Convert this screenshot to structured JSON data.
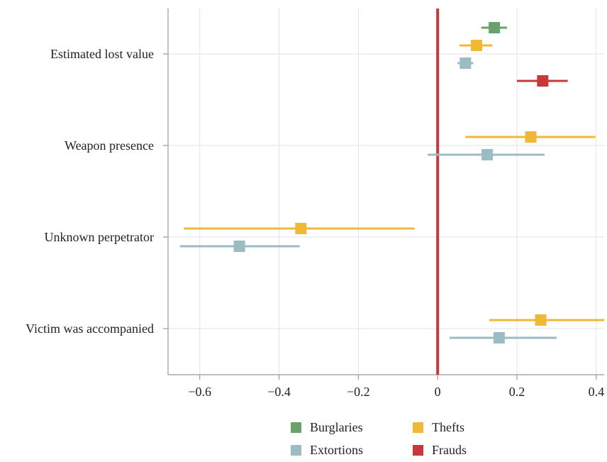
{
  "chart_data": {
    "type": "coefficient_plot",
    "orientation": "horizontal",
    "categories": [
      "Estimated lost value",
      "Weapon presence",
      "Unknown perpetrator",
      "Victim was accompanied"
    ],
    "x_ticks": [
      -0.6,
      -0.4,
      -0.2,
      0,
      0.2,
      0.4
    ],
    "x_tick_labels": [
      "−0.6",
      "−0.4",
      "−0.2",
      "0",
      "0.2",
      "0.4"
    ],
    "xlim": [
      -0.68,
      0.42
    ],
    "reference_line": {
      "x": 0,
      "color": "#c8383a"
    },
    "grid": true,
    "legend_position": "bottom",
    "series": [
      {
        "name": "Burglaries",
        "color": "#6aa26b",
        "points": [
          {
            "category": "Estimated lost value",
            "estimate": 0.143,
            "ci_low": 0.11,
            "ci_high": 0.175
          }
        ]
      },
      {
        "name": "Thefts",
        "color": "#efb835",
        "points": [
          {
            "category": "Estimated lost value",
            "estimate": 0.098,
            "ci_low": 0.055,
            "ci_high": 0.138
          },
          {
            "category": "Weapon presence",
            "estimate": 0.235,
            "ci_low": 0.07,
            "ci_high": 0.398
          },
          {
            "category": "Unknown perpetrator",
            "estimate": -0.345,
            "ci_low": -0.64,
            "ci_high": -0.058
          },
          {
            "category": "Victim was accompanied",
            "estimate": 0.26,
            "ci_low": 0.13,
            "ci_high": 0.42
          }
        ]
      },
      {
        "name": "Extortions",
        "color": "#9bbcc2",
        "points": [
          {
            "category": "Estimated lost value",
            "estimate": 0.07,
            "ci_low": 0.05,
            "ci_high": 0.09
          },
          {
            "category": "Weapon presence",
            "estimate": 0.125,
            "ci_low": -0.025,
            "ci_high": 0.27
          },
          {
            "category": "Unknown perpetrator",
            "estimate": -0.5,
            "ci_low": -0.65,
            "ci_high": -0.348
          },
          {
            "category": "Victim was accompanied",
            "estimate": 0.155,
            "ci_low": 0.03,
            "ci_high": 0.3
          }
        ]
      },
      {
        "name": "Frauds",
        "color": "#c8383a",
        "points": [
          {
            "category": "Estimated lost value",
            "estimate": 0.265,
            "ci_low": 0.2,
            "ci_high": 0.328
          }
        ]
      }
    ]
  }
}
